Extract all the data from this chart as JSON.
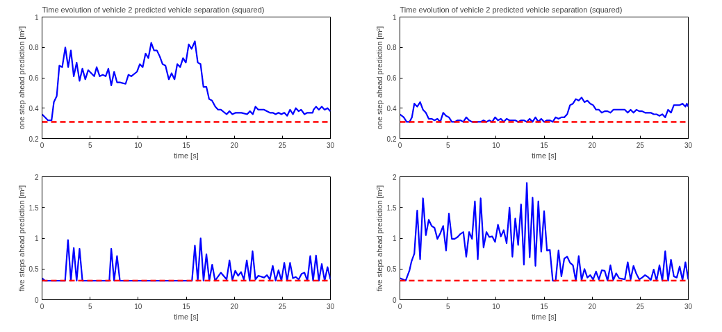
{
  "chart_data": [
    {
      "type": "line",
      "title": "Time evolution of vehicle 2 predicted vehicle separation (squared)",
      "xlabel": "time [s]",
      "ylabel": "one step ahead prediction [m²]",
      "xlim": [
        0,
        30
      ],
      "xticks": [
        0,
        5,
        10,
        15,
        20,
        25,
        30
      ],
      "ylim": [
        0.2,
        1
      ],
      "yticks": [
        0.2,
        0.4,
        0.6,
        0.8,
        1
      ],
      "grid": false,
      "line_style": "solid",
      "ref_lines": [
        {
          "axis": "y",
          "value": 0.31,
          "color": "#ff0000",
          "line_style": "dashed"
        }
      ],
      "series": [
        {
          "color": "#0000ff",
          "x": [
            0,
            0.62,
            0.99,
            1.23,
            1.53,
            1.8,
            2.1,
            2.42,
            2.72,
            3.0,
            3.3,
            3.6,
            3.9,
            4.2,
            4.5,
            4.8,
            5.43,
            5.68,
            6.0,
            6.32,
            6.62,
            6.9,
            7.2,
            7.5,
            7.8,
            8.1,
            8.69,
            8.99,
            9.28,
            9.88,
            10.17,
            10.47,
            10.77,
            11.06,
            11.36,
            11.65,
            11.95,
            12.25,
            12.54,
            12.84,
            13.19,
            13.48,
            13.78,
            14.07,
            14.37,
            14.67,
            14.96,
            15.26,
            15.56,
            15.9,
            16.2,
            16.49,
            16.79,
            17.1,
            17.38,
            17.68,
            18.02,
            18.32,
            18.6,
            19.2,
            19.5,
            19.8,
            20.15,
            20.74,
            21.33,
            21.63,
            21.93,
            22.2,
            22.5,
            23.1,
            23.7,
            24.0,
            24.3,
            24.6,
            24.9,
            25.2,
            25.5,
            25.8,
            26.1,
            26.4,
            26.7,
            26.95,
            27.3,
            27.6,
            28.15,
            28.25,
            28.5,
            28.8,
            29.1,
            29.4,
            29.7,
            30
          ],
          "values": [
            0.36,
            0.32,
            0.32,
            0.44,
            0.48,
            0.68,
            0.67,
            0.8,
            0.67,
            0.78,
            0.61,
            0.7,
            0.58,
            0.66,
            0.59,
            0.65,
            0.61,
            0.67,
            0.61,
            0.62,
            0.61,
            0.66,
            0.55,
            0.64,
            0.57,
            0.57,
            0.56,
            0.62,
            0.61,
            0.64,
            0.69,
            0.67,
            0.76,
            0.73,
            0.83,
            0.78,
            0.78,
            0.74,
            0.69,
            0.68,
            0.59,
            0.63,
            0.59,
            0.69,
            0.67,
            0.73,
            0.7,
            0.82,
            0.79,
            0.84,
            0.7,
            0.69,
            0.54,
            0.54,
            0.46,
            0.45,
            0.41,
            0.39,
            0.39,
            0.36,
            0.38,
            0.36,
            0.37,
            0.37,
            0.36,
            0.38,
            0.36,
            0.41,
            0.39,
            0.39,
            0.37,
            0.37,
            0.36,
            0.37,
            0.36,
            0.37,
            0.35,
            0.39,
            0.36,
            0.4,
            0.38,
            0.39,
            0.36,
            0.37,
            0.37,
            0.39,
            0.41,
            0.39,
            0.41,
            0.39,
            0.4,
            0.38
          ]
        }
      ]
    },
    {
      "type": "line",
      "title": "Time evolution of vehicle 2 predicted vehicle separation (squared)",
      "xlabel": "time [s]",
      "ylabel": "one step ahead prediction [m²]",
      "xlim": [
        0,
        30
      ],
      "xticks": [
        0,
        5,
        10,
        15,
        20,
        25,
        30
      ],
      "ylim": [
        0.2,
        1
      ],
      "yticks": [
        0.2,
        0.4,
        0.6,
        0.8,
        1
      ],
      "grid": false,
      "line_style": "solid",
      "ref_lines": [
        {
          "axis": "y",
          "value": 0.31,
          "color": "#ff0000",
          "line_style": "dashed"
        }
      ],
      "series": [
        {
          "color": "#0000ff",
          "x": [
            0,
            0.4,
            0.7,
            1.0,
            1.25,
            1.5,
            1.8,
            2.1,
            2.4,
            2.7,
            3.0,
            3.3,
            3.6,
            3.9,
            4.2,
            4.5,
            4.8,
            5.1,
            5.4,
            5.7,
            6.0,
            6.3,
            6.6,
            6.9,
            7.2,
            7.5,
            8.1,
            8.4,
            8.7,
            9.0,
            9.3,
            9.6,
            9.9,
            10.2,
            10.5,
            10.8,
            11.1,
            11.4,
            11.7,
            12.0,
            12.3,
            12.6,
            12.9,
            13.2,
            13.5,
            13.8,
            14.1,
            14.4,
            14.7,
            15.0,
            15.3,
            15.6,
            15.9,
            16.2,
            16.5,
            16.8,
            17.1,
            17.4,
            17.7,
            18.0,
            18.3,
            18.6,
            18.9,
            19.2,
            19.5,
            19.8,
            20.1,
            20.4,
            20.7,
            21.0,
            21.3,
            21.6,
            21.9,
            22.2,
            22.5,
            22.8,
            23.1,
            23.4,
            23.7,
            24.0,
            24.3,
            24.6,
            24.9,
            25.2,
            25.5,
            25.8,
            26.1,
            26.4,
            26.7,
            27.0,
            27.3,
            27.6,
            27.9,
            28.2,
            28.5,
            28.8,
            29.1,
            29.4,
            29.7,
            29.85,
            30
          ],
          "values": [
            0.36,
            0.34,
            0.31,
            0.31,
            0.34,
            0.43,
            0.41,
            0.44,
            0.39,
            0.37,
            0.33,
            0.33,
            0.32,
            0.33,
            0.31,
            0.37,
            0.35,
            0.34,
            0.31,
            0.31,
            0.32,
            0.32,
            0.31,
            0.34,
            0.32,
            0.31,
            0.31,
            0.31,
            0.32,
            0.31,
            0.32,
            0.31,
            0.34,
            0.32,
            0.33,
            0.31,
            0.33,
            0.32,
            0.32,
            0.32,
            0.31,
            0.32,
            0.32,
            0.31,
            0.33,
            0.31,
            0.34,
            0.31,
            0.33,
            0.31,
            0.32,
            0.32,
            0.31,
            0.34,
            0.33,
            0.34,
            0.34,
            0.36,
            0.42,
            0.43,
            0.46,
            0.45,
            0.47,
            0.44,
            0.45,
            0.43,
            0.42,
            0.39,
            0.39,
            0.37,
            0.38,
            0.38,
            0.37,
            0.39,
            0.39,
            0.39,
            0.39,
            0.39,
            0.37,
            0.39,
            0.37,
            0.39,
            0.38,
            0.38,
            0.37,
            0.37,
            0.37,
            0.36,
            0.36,
            0.35,
            0.36,
            0.34,
            0.39,
            0.37,
            0.42,
            0.42,
            0.42,
            0.43,
            0.41,
            0.43,
            0.41
          ]
        }
      ]
    },
    {
      "type": "line",
      "xlabel": "time [s]",
      "ylabel": "five steps ahead prediction [m²]",
      "xlim": [
        0,
        30
      ],
      "xticks": [
        0,
        5,
        10,
        15,
        20,
        25,
        30
      ],
      "ylim": [
        0,
        2
      ],
      "yticks": [
        0,
        0.5,
        1,
        1.5,
        2
      ],
      "grid": false,
      "line_style": "solid",
      "ref_lines": [
        {
          "axis": "y",
          "value": 0.31,
          "color": "#ff0000",
          "line_style": "dashed"
        }
      ],
      "series": [
        {
          "color": "#0000ff",
          "x": [
            0,
            0.3,
            2.4,
            2.7,
            3.0,
            3.3,
            3.6,
            3.9,
            4.2,
            7.0,
            7.2,
            7.5,
            7.8,
            8.1,
            15.6,
            15.9,
            16.2,
            16.5,
            16.8,
            17.1,
            17.4,
            17.7,
            18.0,
            18.6,
            19.2,
            19.5,
            19.8,
            20.1,
            20.4,
            20.7,
            21.0,
            21.3,
            21.6,
            21.9,
            22.2,
            22.5,
            23.1,
            23.4,
            23.7,
            24.0,
            24.3,
            24.6,
            24.9,
            25.2,
            25.5,
            25.8,
            26.1,
            26.4,
            26.7,
            27.0,
            27.3,
            27.6,
            27.9,
            28.2,
            28.5,
            28.8,
            29.1,
            29.4,
            29.7,
            30
          ],
          "values": [
            0.35,
            0.31,
            0.31,
            0.97,
            0.31,
            0.84,
            0.31,
            0.83,
            0.31,
            0.31,
            0.83,
            0.31,
            0.71,
            0.31,
            0.31,
            0.88,
            0.31,
            1.0,
            0.31,
            0.74,
            0.31,
            0.57,
            0.31,
            0.44,
            0.33,
            0.64,
            0.32,
            0.47,
            0.39,
            0.45,
            0.33,
            0.64,
            0.31,
            0.79,
            0.33,
            0.39,
            0.36,
            0.4,
            0.33,
            0.55,
            0.31,
            0.48,
            0.31,
            0.6,
            0.31,
            0.6,
            0.35,
            0.37,
            0.33,
            0.42,
            0.44,
            0.31,
            0.71,
            0.31,
            0.72,
            0.31,
            0.58,
            0.31,
            0.53,
            0.33
          ]
        }
      ]
    },
    {
      "type": "line",
      "xlabel": "time [s]",
      "ylabel": "five steps ahead prediction [m²]",
      "xlim": [
        0,
        30
      ],
      "xticks": [
        0,
        5,
        10,
        15,
        20,
        25,
        30
      ],
      "ylim": [
        0,
        2
      ],
      "yticks": [
        0,
        0.5,
        1,
        1.5,
        2
      ],
      "grid": false,
      "line_style": "solid",
      "ref_lines": [
        {
          "axis": "y",
          "value": 0.31,
          "color": "#ff0000",
          "line_style": "dashed"
        }
      ],
      "series": [
        {
          "color": "#0000ff",
          "x": [
            0,
            0.6,
            1.0,
            1.2,
            1.5,
            1.8,
            2.1,
            2.4,
            2.7,
            3.0,
            3.3,
            3.6,
            3.9,
            4.2,
            4.5,
            4.8,
            5.1,
            5.4,
            5.7,
            6.0,
            6.3,
            6.6,
            6.9,
            7.2,
            7.5,
            7.8,
            8.1,
            8.4,
            8.7,
            9.0,
            9.3,
            9.6,
            9.9,
            10.2,
            10.5,
            10.8,
            11.1,
            11.4,
            11.7,
            12.0,
            12.3,
            12.6,
            12.9,
            13.2,
            13.5,
            13.8,
            14.1,
            14.4,
            14.7,
            15.0,
            15.3,
            15.6,
            15.9,
            16.2,
            16.5,
            16.8,
            17.1,
            17.4,
            17.7,
            18.0,
            18.3,
            18.6,
            18.9,
            19.2,
            19.5,
            19.8,
            20.1,
            20.4,
            20.7,
            21.0,
            21.3,
            21.6,
            21.9,
            22.2,
            22.5,
            22.8,
            23.1,
            23.4,
            23.7,
            24.0,
            24.3,
            24.6,
            24.9,
            25.2,
            25.5,
            25.8,
            26.1,
            26.4,
            26.7,
            27.0,
            27.3,
            27.6,
            27.9,
            28.2,
            28.5,
            28.8,
            29.1,
            29.4,
            29.7,
            30
          ],
          "values": [
            0.35,
            0.31,
            0.48,
            0.62,
            0.75,
            1.45,
            0.66,
            1.65,
            1.05,
            1.3,
            1.2,
            1.17,
            0.99,
            1.08,
            1.2,
            0.8,
            1.4,
            0.99,
            0.99,
            1.02,
            1.07,
            1.1,
            0.7,
            1.1,
            0.99,
            1.6,
            0.66,
            1.65,
            0.85,
            1.1,
            1.02,
            1.03,
            0.94,
            1.22,
            1.03,
            1.13,
            0.92,
            1.5,
            0.7,
            1.32,
            0.89,
            1.55,
            0.57,
            1.9,
            0.69,
            1.66,
            0.55,
            1.6,
            0.78,
            1.44,
            0.8,
            0.81,
            0.31,
            0.31,
            0.8,
            0.38,
            0.67,
            0.7,
            0.6,
            0.56,
            0.31,
            0.71,
            0.32,
            0.5,
            0.36,
            0.4,
            0.33,
            0.46,
            0.33,
            0.48,
            0.47,
            0.31,
            0.56,
            0.32,
            0.43,
            0.35,
            0.34,
            0.33,
            0.61,
            0.33,
            0.55,
            0.42,
            0.33,
            0.36,
            0.4,
            0.37,
            0.32,
            0.49,
            0.31,
            0.56,
            0.31,
            0.79,
            0.31,
            0.65,
            0.38,
            0.36,
            0.54,
            0.32,
            0.61,
            0.33
          ]
        }
      ]
    }
  ]
}
